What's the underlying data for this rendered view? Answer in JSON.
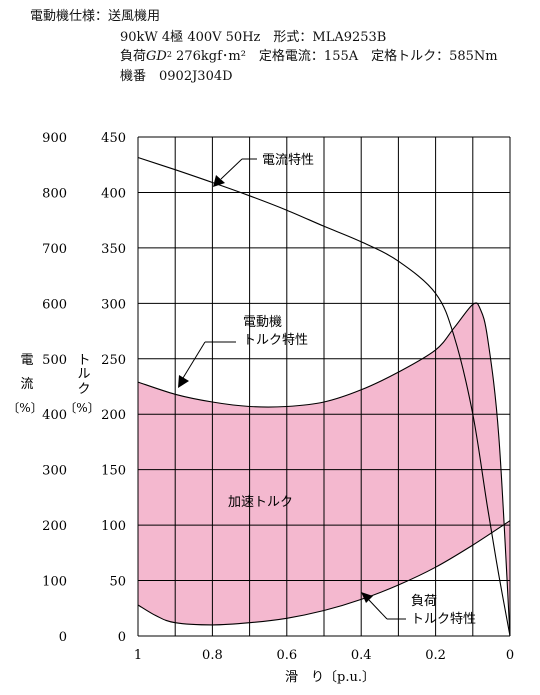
{
  "spec": {
    "title": "電動機仕様：送風機用",
    "line1": "90kW  4極  400V  50Hz　形式：MLA9253B",
    "line2_prefix": "負荷",
    "line2_gd": "GD",
    "line2_sup": "2",
    "line2_rest": " 276kgf･m²　定格電流：155A　定格トルク：585Nm",
    "line3": "機番　0902J304D"
  },
  "chart_data": {
    "type": "line",
    "x_axis": {
      "label": "滑　り〔p.u.〕",
      "ticks": [
        "1",
        "0.8",
        "0.6",
        "0.4",
        "0.2",
        "0"
      ],
      "range": [
        1,
        0
      ]
    },
    "y_current": {
      "label_chars": [
        "電",
        "流"
      ],
      "unit": "〔%〕",
      "ticks": [
        "0",
        "100",
        "200",
        "300",
        "400",
        "500",
        "600",
        "700",
        "800",
        "900"
      ],
      "range": [
        0,
        900
      ]
    },
    "y_torque": {
      "label_chars": [
        "ト",
        "ル",
        "ク"
      ],
      "unit": "〔%〕",
      "ticks": [
        "0",
        "50",
        "100",
        "150",
        "200",
        "250",
        "300",
        "350",
        "400",
        "450"
      ],
      "range": [
        0,
        450
      ]
    },
    "grid": true,
    "fill_color": "#f4b8cf",
    "series": [
      {
        "name": "電流特性",
        "axis": "current",
        "points": [
          [
            1.0,
            863
          ],
          [
            0.9,
            841
          ],
          [
            0.8,
            818
          ],
          [
            0.7,
            794
          ],
          [
            0.6,
            768
          ],
          [
            0.5,
            739
          ],
          [
            0.4,
            711
          ],
          [
            0.3,
            676
          ],
          [
            0.2,
            618
          ],
          [
            0.15,
            540
          ],
          [
            0.1,
            400
          ],
          [
            0.06,
            230
          ],
          [
            0.03,
            110
          ],
          [
            0.0,
            0
          ]
        ]
      },
      {
        "name": "電動機トルク特性",
        "axis": "torque",
        "points": [
          [
            1.0,
            229
          ],
          [
            0.9,
            218
          ],
          [
            0.8,
            211
          ],
          [
            0.7,
            207
          ],
          [
            0.6,
            207
          ],
          [
            0.5,
            211
          ],
          [
            0.4,
            222
          ],
          [
            0.3,
            238
          ],
          [
            0.2,
            258
          ],
          [
            0.15,
            278
          ],
          [
            0.1,
            299
          ],
          [
            0.08,
            295
          ],
          [
            0.06,
            268
          ],
          [
            0.03,
            180
          ],
          [
            0.0,
            0
          ]
        ]
      },
      {
        "name": "負荷トルク特性",
        "axis": "torque",
        "points": [
          [
            1.0,
            28
          ],
          [
            0.95,
            18
          ],
          [
            0.9,
            12
          ],
          [
            0.8,
            10
          ],
          [
            0.7,
            12
          ],
          [
            0.6,
            16
          ],
          [
            0.5,
            23
          ],
          [
            0.4,
            33
          ],
          [
            0.3,
            46
          ],
          [
            0.2,
            62
          ],
          [
            0.1,
            82
          ],
          [
            0.0,
            104
          ]
        ]
      }
    ],
    "annotations": {
      "current": "電流特性",
      "motor_torque_1": "電動機",
      "motor_torque_2": "トルク特性",
      "accel": "加速トルク",
      "load_1": "負荷",
      "load_2": "トルク特性"
    }
  }
}
